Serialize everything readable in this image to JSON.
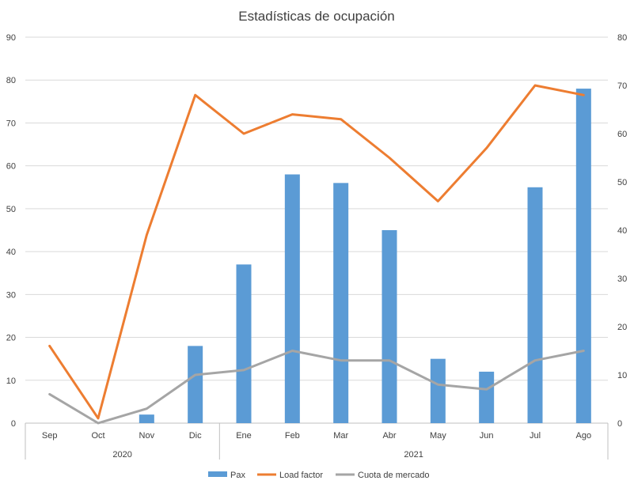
{
  "chart_data": {
    "type": "bar",
    "title": "Estadísticas de ocupación",
    "categories": [
      "Sep",
      "Oct",
      "Nov",
      "Dic",
      "Ene",
      "Feb",
      "Mar",
      "Abr",
      "May",
      "Jun",
      "Jul",
      "Ago"
    ],
    "category_groups": [
      {
        "label": "2020",
        "categories": [
          "Sep",
          "Oct",
          "Nov",
          "Dic"
        ]
      },
      {
        "label": "2021",
        "categories": [
          "Ene",
          "Feb",
          "Mar",
          "Abr",
          "May",
          "Jun",
          "Jul",
          "Ago"
        ]
      }
    ],
    "y_left": {
      "ticks": [
        "0",
        "10",
        "20",
        "30",
        "40",
        "50",
        "60",
        "70",
        "80",
        "90"
      ],
      "ylim": [
        0,
        90
      ]
    },
    "y_right": {
      "ticks": [
        "0",
        "10",
        "20",
        "30",
        "40",
        "50",
        "60",
        "70",
        "80"
      ],
      "ylim": [
        0,
        80
      ]
    },
    "grid": true,
    "legend_position": "bottom",
    "series": [
      {
        "name": "Pax",
        "type": "bar",
        "axis": "left",
        "color": "#5b9bd5",
        "values": [
          0,
          0,
          2,
          18,
          37,
          58,
          56,
          45,
          15,
          12,
          55,
          78
        ]
      },
      {
        "name": "Load factor",
        "type": "line",
        "axis": "right",
        "color": "#ed7d31",
        "values": [
          16,
          1,
          39,
          68,
          60,
          64,
          63,
          55,
          46,
          57,
          70,
          68
        ]
      },
      {
        "name": "Cuota de mercado",
        "type": "line",
        "axis": "right",
        "color": "#a5a5a5",
        "values": [
          6,
          0,
          3,
          10,
          11,
          15,
          13,
          13,
          8,
          7,
          13,
          15
        ]
      }
    ]
  }
}
